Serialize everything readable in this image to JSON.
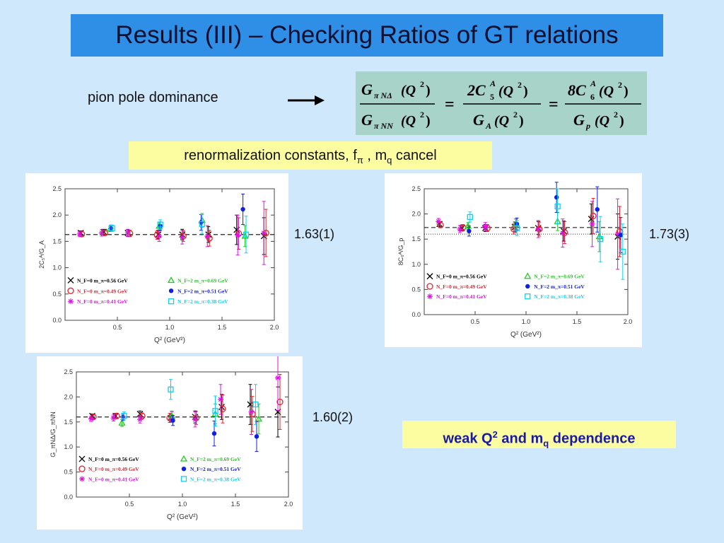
{
  "title": "Results (III) – Checking Ratios of GT relations",
  "pion_label": "pion pole dominance",
  "renorm": {
    "text": "renormalization constants, f",
    "sub_pi": "π",
    "middle": " , m",
    "sub_q": "q",
    "end": " cancel"
  },
  "weak": {
    "prefix": "weak Q",
    "sup": "2",
    "middle": " and m",
    "sub": "q",
    "end": " dependence"
  },
  "formula": {
    "lhs_num_main": "G",
    "lhs_num_sub": "π NΔ",
    "lhs_num_arg": "(Q",
    "lhs_num_sup": "2",
    "lhs_num_close": ")",
    "lhs_den_main": "G",
    "lhs_den_sub": "π NN",
    "lhs_den_arg": "(Q",
    "lhs_den_sup": "2",
    "lhs_den_close": ")",
    "mid_num_coef": "2C",
    "mid_num_sup": "A",
    "mid_num_sub": "5",
    "mid_num_arg": "(Q",
    "mid_num_argsup": "2",
    "mid_num_close": ")",
    "mid_den_main": "G",
    "mid_den_sub": "A",
    "mid_den_arg": "(Q",
    "mid_den_sup": "2",
    "mid_den_close": ")",
    "rhs_num_coef": "8C",
    "rhs_num_sup": "A",
    "rhs_num_sub": "6",
    "rhs_num_arg": "(Q",
    "rhs_num_argsup": "2",
    "rhs_num_close": ")",
    "rhs_den_main": "G",
    "rhs_den_sub": "p",
    "rhs_den_arg": "(Q",
    "rhs_den_sup": "2",
    "rhs_den_close": ")",
    "eq": "="
  },
  "fit_values": [
    "1.63(1)",
    "1.73(3)",
    "1.60(2)"
  ],
  "colors": {
    "black": "#000000",
    "red": "#e8202a",
    "magenta": "#e010e0",
    "green": "#22cc22",
    "blue": "#1020e0",
    "cyan": "#10d0f0",
    "darkred": "#900000"
  },
  "chart_data": [
    {
      "type": "scatter",
      "xlabel": "Q² (GeV²)",
      "ylabel": "2C₅ᴬ/G_A",
      "xlim": [
        0,
        2.0
      ],
      "ylim": [
        0,
        2.5
      ],
      "xticks": [
        "0.5",
        "1.0",
        "1.5",
        "2.0"
      ],
      "yticks": [
        "0.0",
        "0.5",
        "1.0",
        "1.5",
        "2.0",
        "2.5"
      ],
      "fit_line": 1.63,
      "grid": false,
      "legend": [
        {
          "name": "N_F=0  m_π=0.56  GeV",
          "color": "#000000",
          "marker": "x"
        },
        {
          "name": "N_F=0  m_π=0.49  GeV",
          "color": "#e8202a",
          "marker": "o"
        },
        {
          "name": "N_F=0  m_π=0.41  GeV",
          "color": "#e010e0",
          "marker": "*"
        },
        {
          "name": "N_F=2  m_π=0.69  GeV",
          "color": "#22cc22",
          "marker": "^"
        },
        {
          "name": "N_F=2  m_π=0.51  GeV",
          "color": "#1020e0",
          "marker": "dot"
        },
        {
          "name": "N_F=2  m_π=0.38  GeV",
          "color": "#10d0f0",
          "marker": "s"
        }
      ],
      "series": [
        {
          "name": "N_F=0  m_π=0.56  GeV",
          "color": "#000000",
          "marker": "x",
          "x": [
            0.15,
            0.37,
            0.6,
            0.89,
            1.12,
            1.37,
            1.64,
            1.9
          ],
          "y": [
            1.66,
            1.68,
            1.66,
            1.63,
            1.63,
            1.63,
            1.72,
            1.6
          ],
          "err": [
            0.04,
            0.05,
            0.06,
            0.08,
            0.1,
            0.15,
            0.28,
            0.35
          ]
        },
        {
          "name": "N_F=0  m_π=0.49  GeV",
          "color": "#e8202a",
          "marker": "o",
          "x": [
            0.16,
            0.38,
            0.62,
            0.88,
            1.13,
            1.38,
            1.66,
            1.92
          ],
          "y": [
            1.64,
            1.66,
            1.65,
            1.62,
            1.6,
            1.56,
            1.65,
            1.66
          ],
          "err": [
            0.04,
            0.05,
            0.06,
            0.08,
            0.1,
            0.15,
            0.3,
            0.45
          ]
        },
        {
          "name": "N_F=0  m_π=0.41  GeV",
          "color": "#e010e0",
          "marker": "*",
          "x": [
            0.14,
            0.35,
            0.6,
            0.9,
            1.12,
            1.36,
            1.65,
            1.9
          ],
          "y": [
            1.64,
            1.66,
            1.66,
            1.6,
            1.58,
            1.6,
            1.62,
            1.66
          ],
          "err": [
            0.05,
            0.06,
            0.07,
            0.1,
            0.13,
            0.2,
            0.38,
            0.6
          ]
        },
        {
          "name": "N_F=2  m_π=0.69  GeV",
          "color": "#22cc22",
          "marker": "^",
          "x": [
            0.43,
            0.9,
            1.31,
            1.72
          ],
          "y": [
            1.74,
            1.79,
            1.9,
            1.6
          ],
          "err": [
            0.05,
            0.07,
            0.13,
            0.2
          ]
        },
        {
          "name": "N_F=2  m_π=0.51  GeV",
          "color": "#1020e0",
          "marker": "dot",
          "x": [
            0.44,
            0.91,
            1.3,
            1.7
          ],
          "y": [
            1.75,
            1.79,
            1.86,
            2.11
          ],
          "err": [
            0.06,
            0.08,
            0.15,
            0.29
          ]
        },
        {
          "name": "N_F=2  m_π=0.38  GeV",
          "color": "#10d0f0",
          "marker": "s",
          "x": [
            0.45,
            0.91,
            1.31,
            1.73
          ],
          "y": [
            1.75,
            1.82,
            1.83,
            1.63
          ],
          "err": [
            0.06,
            0.09,
            0.18,
            0.35
          ]
        }
      ]
    },
    {
      "type": "scatter",
      "xlabel": "Q² (GeV²)",
      "ylabel": "8C₆ᴬ/G_p",
      "xlim": [
        0,
        2.0
      ],
      "ylim": [
        0,
        2.5
      ],
      "xticks": [
        "0.5",
        "1.0",
        "1.5",
        "2.0"
      ],
      "yticks": [
        "0.0",
        "0.5",
        "1.0",
        "1.5",
        "2.0",
        "2.5"
      ],
      "fit_line": 1.73,
      "fit_line2": 1.6,
      "grid": false,
      "legend": [
        {
          "name": "N_F=0  m_π=0.56  GeV",
          "color": "#000000",
          "marker": "x"
        },
        {
          "name": "N_F=0  m_π=0.49  GeV",
          "color": "#e8202a",
          "marker": "o"
        },
        {
          "name": "N_F=0  m_π=0.41  GeV",
          "color": "#e010e0",
          "marker": "*"
        },
        {
          "name": "N_F=2  m_π=0.69  GeV",
          "color": "#22cc22",
          "marker": "^"
        },
        {
          "name": "N_F=2  m_π=0.51  GeV",
          "color": "#1020e0",
          "marker": "dot"
        },
        {
          "name": "N_F=2  m_π=0.38  GeV",
          "color": "#10d0f0",
          "marker": "s"
        }
      ],
      "series": [
        {
          "name": "N_F=0  m_π=0.56  GeV",
          "color": "#000000",
          "marker": "x",
          "x": [
            0.15,
            0.37,
            0.6,
            0.89,
            1.12,
            1.37,
            1.64,
            1.9
          ],
          "y": [
            1.8,
            1.72,
            1.72,
            1.74,
            1.72,
            1.66,
            1.9,
            1.55
          ],
          "err": [
            0.05,
            0.06,
            0.07,
            0.1,
            0.13,
            0.2,
            0.3,
            0.45
          ]
        },
        {
          "name": "N_F=0  m_π=0.49  GeV",
          "color": "#e8202a",
          "marker": "o",
          "x": [
            0.16,
            0.38,
            0.62,
            0.88,
            1.13,
            1.38,
            1.66,
            1.92
          ],
          "y": [
            1.78,
            1.73,
            1.72,
            1.7,
            1.7,
            1.63,
            1.96,
            1.65
          ],
          "err": [
            0.05,
            0.06,
            0.07,
            0.1,
            0.14,
            0.22,
            0.35,
            0.5
          ]
        },
        {
          "name": "N_F=0  m_π=0.41  GeV",
          "color": "#e010e0",
          "marker": "*",
          "x": [
            0.14,
            0.35,
            0.6,
            0.9,
            1.12,
            1.36,
            1.65,
            1.9
          ],
          "y": [
            1.85,
            1.7,
            1.75,
            1.78,
            1.7,
            1.62,
            1.8,
            1.6
          ],
          "err": [
            0.06,
            0.07,
            0.08,
            0.12,
            0.17,
            0.28,
            0.45,
            0.7
          ]
        },
        {
          "name": "N_F=2  m_π=0.69  GeV",
          "color": "#22cc22",
          "marker": "^",
          "x": [
            0.43,
            0.9,
            1.31,
            1.72
          ],
          "y": [
            1.76,
            1.8,
            1.85,
            1.55
          ],
          "err": [
            0.07,
            0.1,
            0.18,
            0.3
          ]
        },
        {
          "name": "N_F=2  m_π=0.51  GeV",
          "color": "#1020e0",
          "marker": "dot",
          "x": [
            0.44,
            0.91,
            1.3,
            1.7,
            1.93
          ],
          "y": [
            1.66,
            1.8,
            2.33,
            2.09,
            1.58
          ],
          "err": [
            0.1,
            0.12,
            0.3,
            0.45,
            0.35
          ]
        },
        {
          "name": "N_F=2  m_π=0.38  GeV",
          "color": "#10d0f0",
          "marker": "s",
          "x": [
            0.45,
            0.91,
            1.31,
            1.73,
            1.95
          ],
          "y": [
            1.94,
            1.72,
            2.15,
            1.5,
            1.25
          ],
          "err": [
            0.1,
            0.15,
            0.35,
            0.45,
            0.55
          ]
        }
      ]
    },
    {
      "type": "scatter",
      "xlabel": "Q² (GeV²)",
      "ylabel": "G_πNΔ/G_πNN",
      "xlim": [
        0,
        2.0
      ],
      "ylim": [
        0,
        2.5
      ],
      "xticks": [
        "0.5",
        "1.0",
        "1.5",
        "2.0"
      ],
      "yticks": [
        "0.0",
        "0.5",
        "1.0",
        "1.5",
        "2.0",
        "2.5"
      ],
      "fit_line": 1.6,
      "grid": false,
      "legend": [
        {
          "name": "N_F=0  m_π=0.56  GeV",
          "color": "#000000",
          "marker": "x"
        },
        {
          "name": "N_F=0  m_π=0.49  GeV",
          "color": "#e8202a",
          "marker": "o"
        },
        {
          "name": "N_F=0  m_π=0.41  GeV",
          "color": "#e010e0",
          "marker": "*"
        },
        {
          "name": "N_F=2  m_π=0.69  GeV",
          "color": "#22cc22",
          "marker": "^"
        },
        {
          "name": "N_F=2  m_π=0.51  GeV",
          "color": "#1020e0",
          "marker": "dot"
        },
        {
          "name": "N_F=2  m_π=0.38  GeV",
          "color": "#10d0f0",
          "marker": "s"
        }
      ],
      "series": [
        {
          "name": "N_F=0  m_π=0.56  GeV",
          "color": "#000000",
          "marker": "x",
          "x": [
            0.15,
            0.37,
            0.6,
            0.89,
            1.12,
            1.37,
            1.64,
            1.9
          ],
          "y": [
            1.62,
            1.62,
            1.66,
            1.58,
            1.6,
            1.8,
            1.85,
            1.7
          ],
          "err": [
            0.04,
            0.05,
            0.06,
            0.08,
            0.12,
            0.25,
            0.4,
            0.5
          ]
        },
        {
          "name": "N_F=0  m_π=0.49  GeV",
          "color": "#e8202a",
          "marker": "o",
          "x": [
            0.16,
            0.38,
            0.62,
            0.88,
            1.13,
            1.38,
            1.66,
            1.92
          ],
          "y": [
            1.6,
            1.62,
            1.62,
            1.58,
            1.58,
            1.76,
            1.66,
            1.9
          ],
          "err": [
            0.04,
            0.05,
            0.06,
            0.09,
            0.13,
            0.28,
            0.35,
            0.55
          ]
        },
        {
          "name": "N_F=0  m_π=0.41  GeV",
          "color": "#e010e0",
          "marker": "*",
          "x": [
            0.14,
            0.35,
            0.6,
            0.9,
            1.12,
            1.36,
            1.65,
            1.9
          ],
          "y": [
            1.56,
            1.58,
            1.55,
            1.6,
            1.55,
            1.95,
            1.7,
            2.38
          ],
          "err": [
            0.05,
            0.06,
            0.07,
            0.1,
            0.15,
            0.3,
            0.45,
            0.65
          ]
        },
        {
          "name": "N_F=2  m_π=0.69  GeV",
          "color": "#22cc22",
          "marker": "^",
          "x": [
            0.43,
            0.9,
            1.31,
            1.72
          ],
          "y": [
            1.48,
            1.62,
            1.66,
            1.56
          ],
          "err": [
            0.07,
            0.1,
            0.2,
            0.3
          ]
        },
        {
          "name": "N_F=2  m_π=0.51  GeV",
          "color": "#1020e0",
          "marker": "dot",
          "x": [
            0.44,
            0.91,
            1.3,
            1.7
          ],
          "y": [
            1.6,
            1.53,
            1.27,
            1.21
          ],
          "err": [
            0.07,
            0.1,
            0.25,
            0.3
          ]
        },
        {
          "name": "N_F=2  m_π=0.38  GeV",
          "color": "#10d0f0",
          "marker": "s",
          "x": [
            0.45,
            0.89,
            1.31,
            1.69
          ],
          "y": [
            1.62,
            2.15,
            1.72,
            1.85
          ],
          "err": [
            0.08,
            0.2,
            0.3,
            0.4
          ]
        }
      ]
    }
  ]
}
